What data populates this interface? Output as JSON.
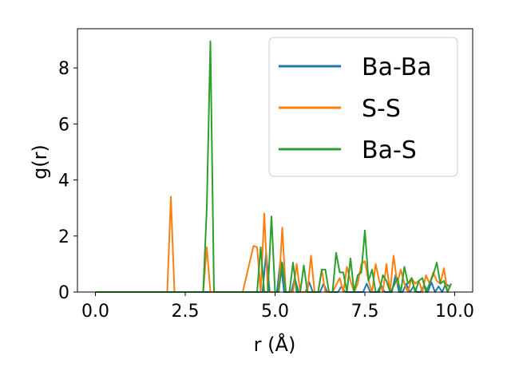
{
  "chart_data": {
    "type": "line",
    "title": "",
    "xlabel": "r (Å)",
    "ylabel": "g(r)",
    "xlim": [
      -0.5,
      10.5
    ],
    "ylim": [
      0,
      9.4
    ],
    "xticks": [
      0.0,
      2.5,
      5.0,
      7.5,
      10.0
    ],
    "xtick_labels": [
      "0.0",
      "2.5",
      "5.0",
      "7.5",
      "10.0"
    ],
    "yticks": [
      0,
      2,
      4,
      6,
      8
    ],
    "ytick_labels": [
      "0",
      "2",
      "4",
      "6",
      "8"
    ],
    "grid": false,
    "legend_position": "upper right",
    "series": [
      {
        "name": "Ba-Ba",
        "color": "#1f77b4",
        "x": [
          0.0,
          4.45,
          4.55,
          4.65,
          4.75,
          4.85,
          4.95,
          5.05,
          5.15,
          5.25,
          5.35,
          5.45,
          5.55,
          5.65,
          5.75,
          5.85,
          5.95,
          6.05,
          6.15,
          6.25,
          6.35,
          6.45,
          6.55,
          6.65,
          6.75,
          6.85,
          6.95,
          7.05,
          7.15,
          7.25,
          7.35,
          7.45,
          7.55,
          7.65,
          7.75,
          7.85,
          7.95,
          8.05,
          8.15,
          8.25,
          8.35,
          8.45,
          8.55,
          8.65,
          8.75,
          8.85,
          8.95,
          9.05,
          9.15,
          9.25,
          9.35,
          9.45,
          9.55,
          9.65,
          9.75,
          9.85
        ],
        "y": [
          0.0,
          0.0,
          0.0,
          0.0,
          1.4,
          0.0,
          0.0,
          0.0,
          1.15,
          0.0,
          0.0,
          0.0,
          0.5,
          0.0,
          0.0,
          0.0,
          0.35,
          0.0,
          0.0,
          0.0,
          0.3,
          0.0,
          0.0,
          0.0,
          0.0,
          0.2,
          0.0,
          0.0,
          0.0,
          0.0,
          0.0,
          0.0,
          0.3,
          0.0,
          0.0,
          0.0,
          0.25,
          0.0,
          0.0,
          0.0,
          0.6,
          0.0,
          0.0,
          0.3,
          0.0,
          0.2,
          0.0,
          0.0,
          0.25,
          0.0,
          0.35,
          0.0,
          0.2,
          0.0,
          0.3,
          0.2
        ]
      },
      {
        "name": "S-S",
        "color": "#ff7f0e",
        "x": [
          0.0,
          2.0,
          2.1,
          2.2,
          3.0,
          3.1,
          3.2,
          4.1,
          4.4,
          4.5,
          4.6,
          4.7,
          4.8,
          4.9,
          5.1,
          5.2,
          5.3,
          5.5,
          5.6,
          5.7,
          5.9,
          6.0,
          6.1,
          6.2,
          6.3,
          6.4,
          6.5,
          6.6,
          6.8,
          6.9,
          7.0,
          7.1,
          7.2,
          7.3,
          7.4,
          7.5,
          7.6,
          7.7,
          7.8,
          7.9,
          8.0,
          8.1,
          8.2,
          8.3,
          8.4,
          8.5,
          8.6,
          8.7,
          8.8,
          8.9,
          9.0,
          9.1,
          9.2,
          9.3,
          9.4,
          9.5,
          9.6,
          9.7,
          9.8,
          9.9
        ],
        "y": [
          0.0,
          0.0,
          3.4,
          0.0,
          0.0,
          1.6,
          0.0,
          0.0,
          1.65,
          1.6,
          0.0,
          2.8,
          0.0,
          0.0,
          0.0,
          2.3,
          0.0,
          0.0,
          1.0,
          0.0,
          0.0,
          1.3,
          0.0,
          0.0,
          0.8,
          0.0,
          0.0,
          0.0,
          0.5,
          0.0,
          0.9,
          0.4,
          0.0,
          0.3,
          1.0,
          1.1,
          0.4,
          0.0,
          1.0,
          0.4,
          0.0,
          1.0,
          0.0,
          1.3,
          0.3,
          0.8,
          0.3,
          0.0,
          0.5,
          0.3,
          0.4,
          0.0,
          0.6,
          0.3,
          0.7,
          0.4,
          0.3,
          0.85,
          0.0,
          0.3
        ]
      },
      {
        "name": "Ba-S",
        "color": "#2ca02c",
        "x": [
          0.0,
          3.0,
          3.1,
          3.2,
          3.3,
          4.5,
          4.6,
          4.7,
          4.8,
          4.9,
          5.0,
          5.1,
          5.2,
          5.3,
          5.4,
          5.5,
          5.6,
          5.7,
          5.8,
          5.9,
          6.0,
          6.1,
          6.2,
          6.3,
          6.4,
          6.5,
          6.6,
          6.7,
          6.8,
          6.9,
          7.0,
          7.1,
          7.2,
          7.3,
          7.4,
          7.5,
          7.6,
          7.7,
          7.8,
          7.9,
          8.0,
          8.1,
          8.2,
          8.3,
          8.4,
          8.5,
          8.6,
          8.7,
          8.8,
          8.9,
          9.0,
          9.1,
          9.2,
          9.3,
          9.4,
          9.5,
          9.6,
          9.7,
          9.8,
          9.9
        ],
        "y": [
          0.0,
          0.0,
          3.0,
          8.95,
          0.0,
          0.0,
          1.6,
          0.0,
          0.0,
          2.7,
          0.0,
          0.0,
          1.05,
          0.0,
          0.0,
          1.05,
          0.0,
          0.0,
          0.95,
          0.0,
          0.0,
          0.0,
          0.0,
          0.8,
          0.8,
          0.0,
          0.0,
          1.4,
          0.7,
          0.7,
          0.0,
          1.2,
          0.0,
          0.6,
          0.7,
          2.2,
          0.4,
          0.8,
          0.0,
          0.0,
          0.6,
          0.4,
          0.0,
          0.2,
          0.5,
          0.0,
          0.9,
          0.3,
          0.5,
          0.0,
          0.4,
          0.5,
          0.0,
          0.3,
          0.6,
          1.05,
          0.3,
          0.4,
          0.0,
          0.3
        ]
      }
    ]
  }
}
